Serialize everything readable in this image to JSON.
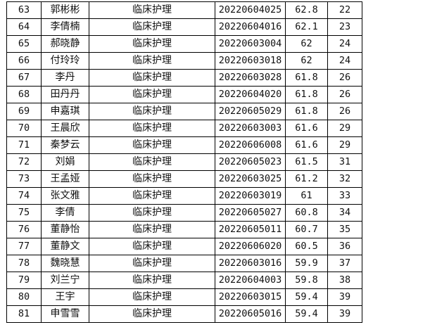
{
  "table": {
    "rows": [
      {
        "no": "63",
        "name": "郭彬彬",
        "major": "临床护理",
        "id": "20220604025",
        "score": "62.8",
        "rank": "22"
      },
      {
        "no": "64",
        "name": "李倩楠",
        "major": "临床护理",
        "id": "20220604016",
        "score": "62.1",
        "rank": "23"
      },
      {
        "no": "65",
        "name": "郝晓静",
        "major": "临床护理",
        "id": "20220603004",
        "score": "62",
        "rank": "24"
      },
      {
        "no": "66",
        "name": "付玲玲",
        "major": "临床护理",
        "id": "20220603018",
        "score": "62",
        "rank": "24"
      },
      {
        "no": "67",
        "name": "李丹",
        "major": "临床护理",
        "id": "20220603028",
        "score": "61.8",
        "rank": "26"
      },
      {
        "no": "68",
        "name": "田丹丹",
        "major": "临床护理",
        "id": "20220604020",
        "score": "61.8",
        "rank": "26"
      },
      {
        "no": "69",
        "name": "申嘉琪",
        "major": "临床护理",
        "id": "20220605029",
        "score": "61.8",
        "rank": "26"
      },
      {
        "no": "70",
        "name": "王晨欣",
        "major": "临床护理",
        "id": "20220603003",
        "score": "61.6",
        "rank": "29"
      },
      {
        "no": "71",
        "name": "秦梦云",
        "major": "临床护理",
        "id": "20220606008",
        "score": "61.6",
        "rank": "29"
      },
      {
        "no": "72",
        "name": "刘娟",
        "major": "临床护理",
        "id": "20220605023",
        "score": "61.5",
        "rank": "31"
      },
      {
        "no": "73",
        "name": "王孟娅",
        "major": "临床护理",
        "id": "20220603025",
        "score": "61.2",
        "rank": "32"
      },
      {
        "no": "74",
        "name": "张文雅",
        "major": "临床护理",
        "id": "20220603019",
        "score": "61",
        "rank": "33"
      },
      {
        "no": "75",
        "name": "李倩",
        "major": "临床护理",
        "id": "20220605027",
        "score": "60.8",
        "rank": "34"
      },
      {
        "no": "76",
        "name": "董静怡",
        "major": "临床护理",
        "id": "20220605011",
        "score": "60.7",
        "rank": "35"
      },
      {
        "no": "77",
        "name": "董静文",
        "major": "临床护理",
        "id": "20220606020",
        "score": "60.5",
        "rank": "36"
      },
      {
        "no": "78",
        "name": "魏晓慧",
        "major": "临床护理",
        "id": "20220603016",
        "score": "59.9",
        "rank": "37"
      },
      {
        "no": "79",
        "name": "刘兰宁",
        "major": "临床护理",
        "id": "20220604003",
        "score": "59.8",
        "rank": "38"
      },
      {
        "no": "80",
        "name": "王宇",
        "major": "临床护理",
        "id": "20220603015",
        "score": "59.4",
        "rank": "39"
      },
      {
        "no": "81",
        "name": "申雪雪",
        "major": "临床护理",
        "id": "20220605016",
        "score": "59.4",
        "rank": "39"
      }
    ]
  }
}
